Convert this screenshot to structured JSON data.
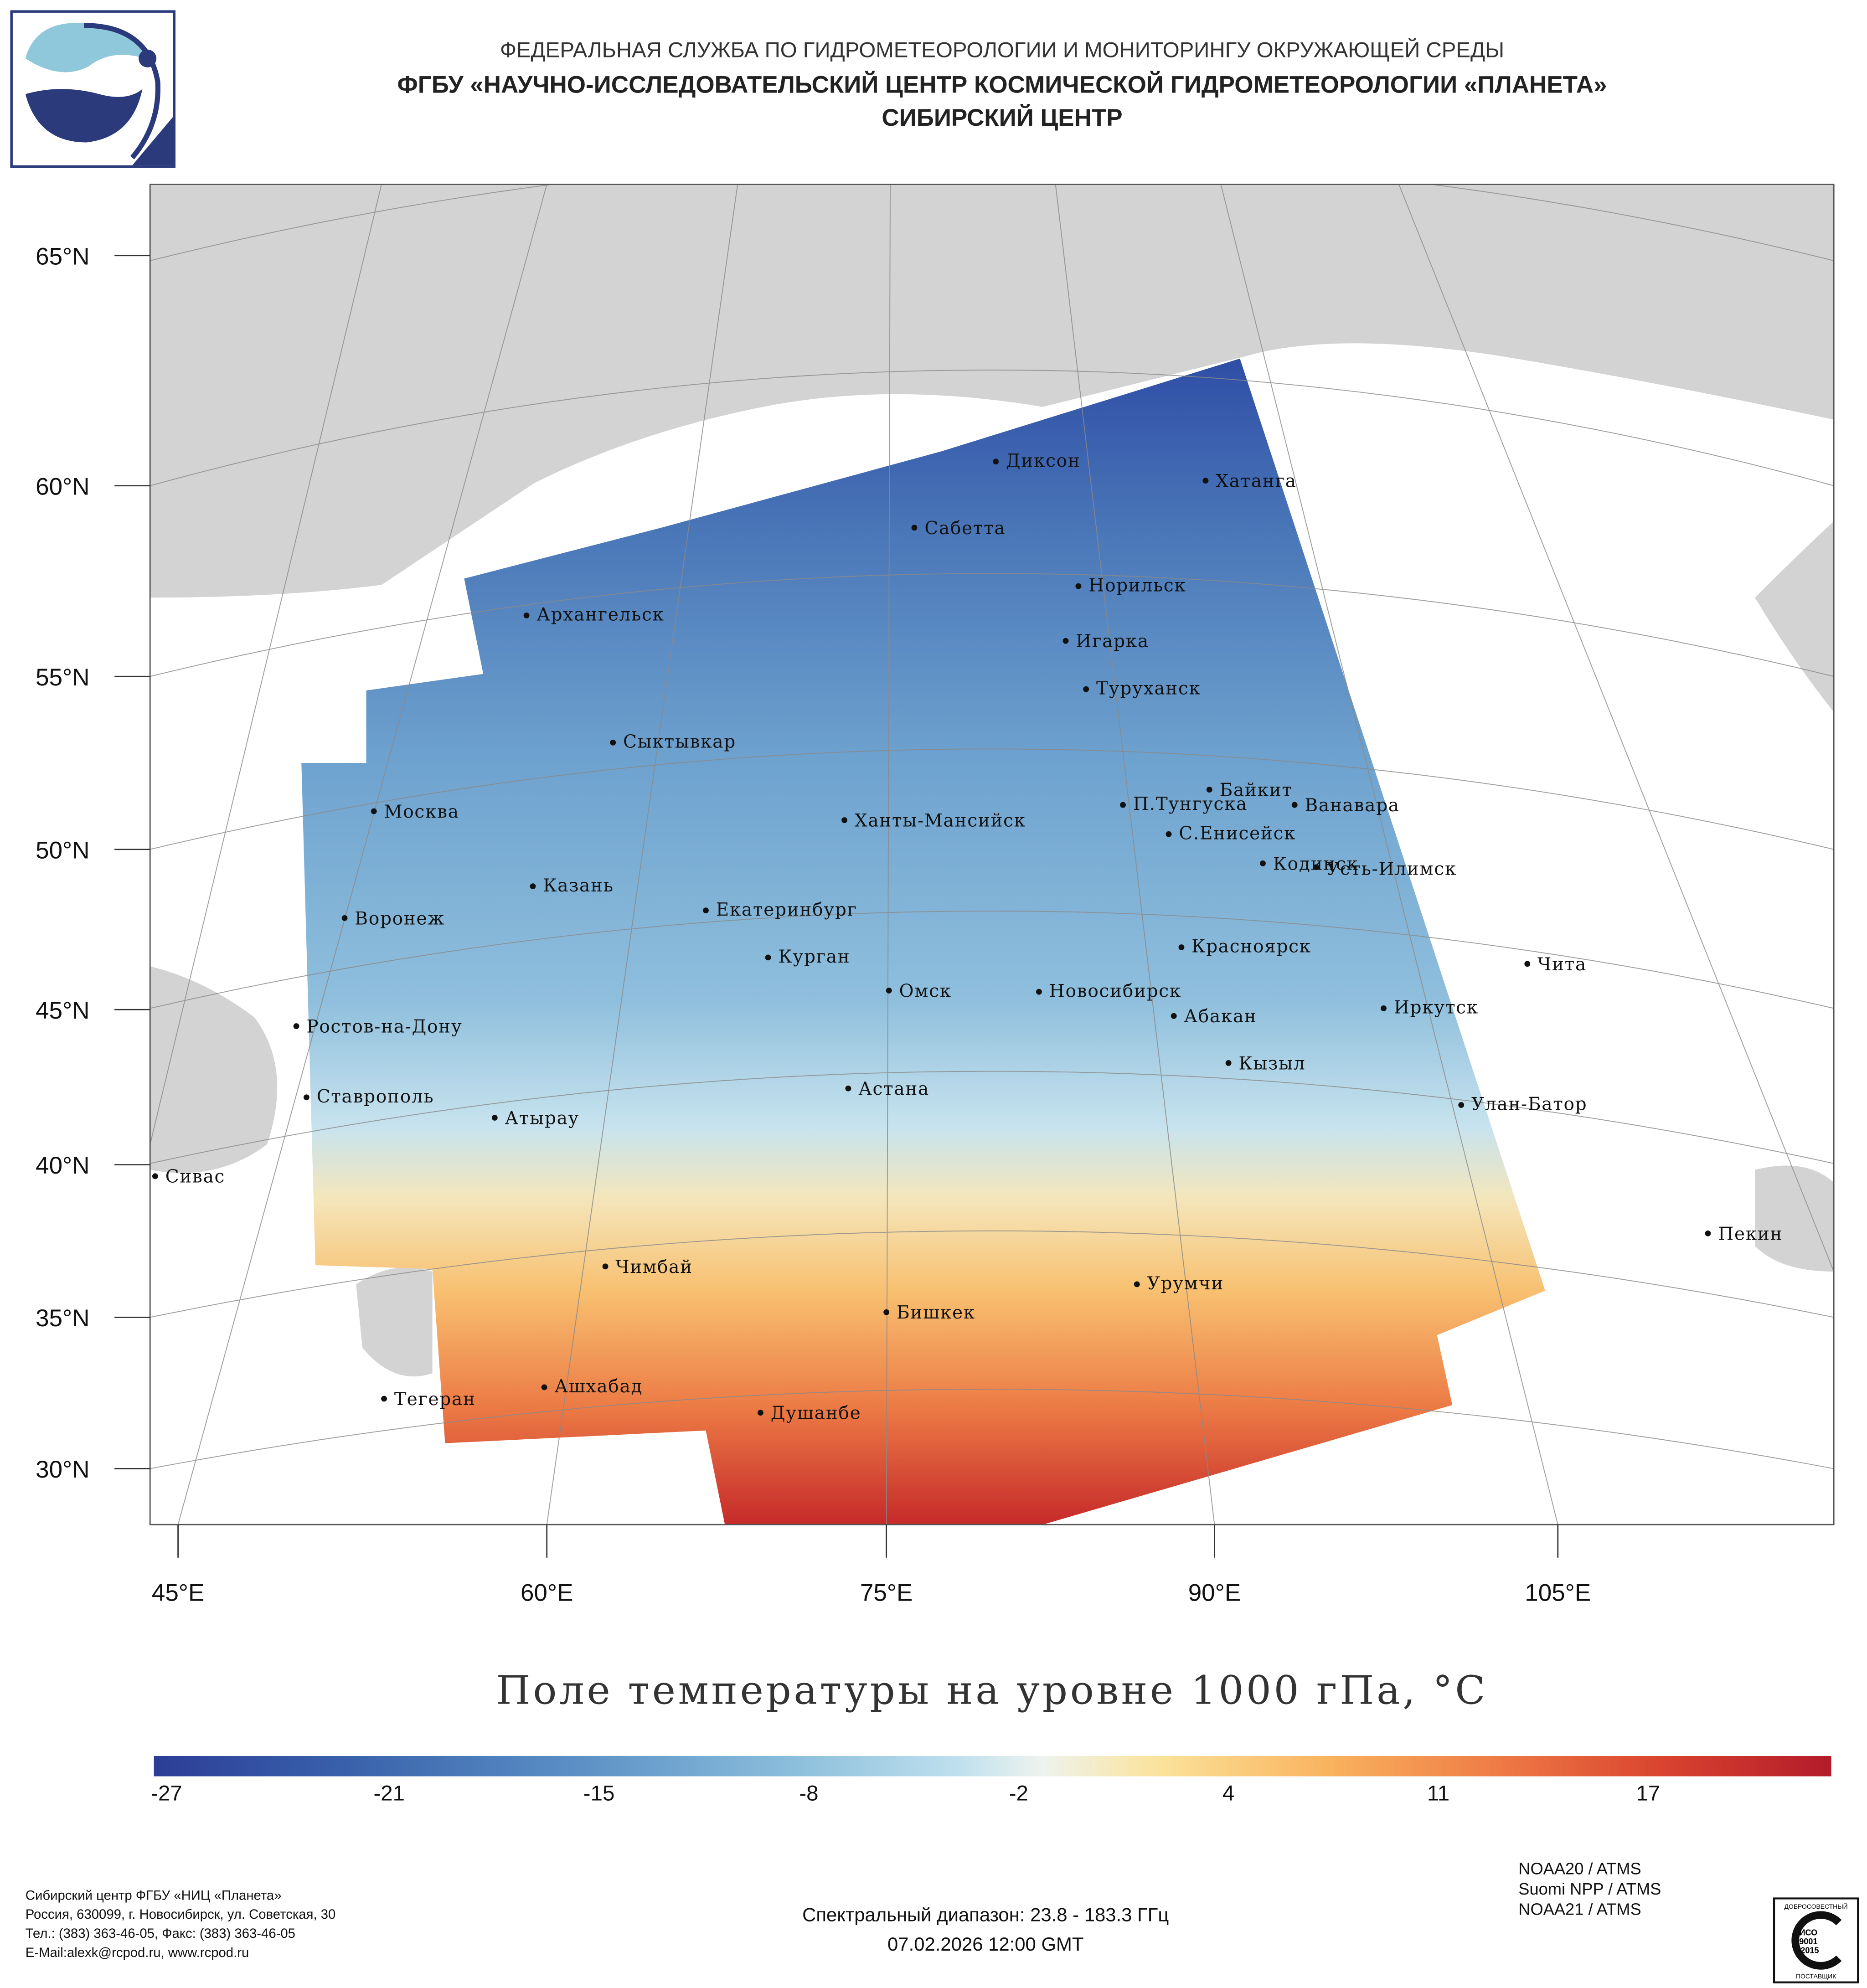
{
  "header": {
    "line1": "ФЕДЕРАЛЬНАЯ СЛУЖБА ПО ГИДРОМЕТЕОРОЛОГИИ И МОНИТОРИНГУ ОКРУЖАЮЩЕЙ СРЕДЫ",
    "line2": "ФГБУ «НАУЧНО-ИССЛЕДОВАТЕЛЬСКИЙ ЦЕНТР КОСМИЧЕСКОЙ ГИДРОМЕТЕОРОЛОГИИ «ПЛАНЕТА»",
    "line3": "СИБИРСКИЙ ЦЕНТР"
  },
  "map": {
    "lat_labels": [
      "65°N",
      "60°N",
      "55°N",
      "50°N",
      "45°N",
      "40°N",
      "35°N",
      "30°N"
    ],
    "lon_labels": [
      "45°E",
      "60°E",
      "75°E",
      "90°E",
      "105°E"
    ],
    "cities": [
      "Диксон",
      "Хатанга",
      "Сабетта",
      "Норильск",
      "Архангельск",
      "Игарка",
      "Туруханск",
      "Сыктывкар",
      "Байкит",
      "Москва",
      "П.Тунгуска",
      "Ванавара",
      "Ханты-Мансийск",
      "С.Енисейск",
      "Кодинск",
      "Усть-Илимск",
      "Казань",
      "Екатеринбург",
      "Воронеж",
      "Красноярск",
      "Курган",
      "Чита",
      "Омск",
      "Новосибирск",
      "Иркутск",
      "Абакан",
      "Ростов-на-Дону",
      "Кызыл",
      "Астана",
      "Ставрополь",
      "Улан-Батор",
      "Атырау",
      "Сивас",
      "Пекин",
      "Чимбай",
      "Урумчи",
      "Бишкек",
      "Ашхабад",
      "Тегеран",
      "Душанбе"
    ]
  },
  "title": "Поле температуры на уровне 1000 гПа, °С",
  "colorbar": {
    "ticks": [
      "-27",
      "-21",
      "-15",
      "-8",
      "-2",
      "4",
      "11",
      "17"
    ],
    "colors": [
      "#2c3e97",
      "#3a63ac",
      "#5b8fc5",
      "#8bbedb",
      "#bfe0ee",
      "#eef3ee",
      "#fbe29a",
      "#f9b35e",
      "#ef7b46",
      "#d9432f",
      "#b31b2a"
    ]
  },
  "footer": {
    "org": "Сибирский центр ФГБУ «НИЦ «Планета»",
    "address": "Россия, 630099, г. Новосибирск, ул. Советская, 30",
    "phones": "Тел.: (383) 363-46-05, Факс: (383) 363-46-05",
    "email": "E-Mail:alexk@rcpod.ru, www.rcpod.ru",
    "spectral": "Спектральный диапазон: 23.8 - 183.3 ГГц",
    "datetime": "07.02.2026 12:00 GMT",
    "satellites": [
      "NOAA20 / ATMS",
      "Suomi NPP / ATMS",
      "NOAA21 / ATMS"
    ]
  },
  "iso": {
    "top": "ДОБРОСОВЕСТНЫЙ",
    "line1": "ИСО",
    "line2": "9001",
    "line3": "-2015",
    "bottom": "ПОСТАВЩИК"
  }
}
